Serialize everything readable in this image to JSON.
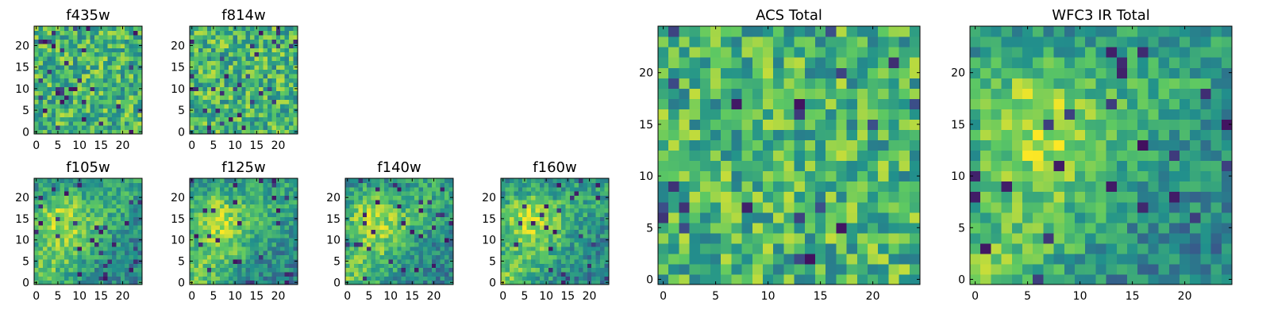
{
  "chart_data": [
    {
      "type": "heatmap",
      "title": "f435w",
      "xlabel": "",
      "ylabel": "",
      "xlim": [
        -0.5,
        24.5
      ],
      "ylim": [
        -0.5,
        24.5
      ],
      "xticks": [
        "0",
        "5",
        "10",
        "15",
        "20"
      ],
      "yticks": [
        "0",
        "5",
        "10",
        "15",
        "20"
      ],
      "grid": false,
      "colormap": "viridis",
      "pattern": "noise-high",
      "seed": 11
    },
    {
      "type": "heatmap",
      "title": "f814w",
      "xlabel": "",
      "ylabel": "",
      "xlim": [
        -0.5,
        24.5
      ],
      "ylim": [
        -0.5,
        24.5
      ],
      "xticks": [
        "0",
        "5",
        "10",
        "15",
        "20"
      ],
      "yticks": [
        "0",
        "5",
        "10",
        "15",
        "20"
      ],
      "grid": false,
      "colormap": "viridis",
      "pattern": "noise-high",
      "seed": 23
    },
    {
      "type": "heatmap",
      "title": "f105w",
      "xlabel": "",
      "ylabel": "",
      "xlim": [
        -0.5,
        24.5
      ],
      "ylim": [
        -0.5,
        24.5
      ],
      "xticks": [
        "0",
        "5",
        "10",
        "15",
        "20"
      ],
      "yticks": [
        "0",
        "5",
        "10",
        "15",
        "20"
      ],
      "grid": false,
      "colormap": "viridis",
      "pattern": "diagonal-ridge",
      "seed": 37
    },
    {
      "type": "heatmap",
      "title": "f125w",
      "xlabel": "",
      "ylabel": "",
      "xlim": [
        -0.5,
        24.5
      ],
      "ylim": [
        -0.5,
        24.5
      ],
      "xticks": [
        "0",
        "5",
        "10",
        "15",
        "20"
      ],
      "yticks": [
        "0",
        "5",
        "10",
        "15",
        "20"
      ],
      "grid": false,
      "colormap": "viridis",
      "pattern": "diagonal-ridge",
      "seed": 41
    },
    {
      "type": "heatmap",
      "title": "f140w",
      "xlabel": "",
      "ylabel": "",
      "xlim": [
        -0.5,
        24.5
      ],
      "ylim": [
        -0.5,
        24.5
      ],
      "xticks": [
        "0",
        "5",
        "10",
        "15",
        "20"
      ],
      "yticks": [
        "0",
        "5",
        "10",
        "15",
        "20"
      ],
      "grid": false,
      "colormap": "viridis",
      "pattern": "diagonal-ridge",
      "seed": 53
    },
    {
      "type": "heatmap",
      "title": "f160w",
      "xlabel": "",
      "ylabel": "",
      "xlim": [
        -0.5,
        24.5
      ],
      "ylim": [
        -0.5,
        24.5
      ],
      "xticks": [
        "0",
        "5",
        "10",
        "15",
        "20"
      ],
      "yticks": [
        "0",
        "5",
        "10",
        "15",
        "20"
      ],
      "grid": false,
      "colormap": "viridis",
      "pattern": "diagonal-ridge",
      "seed": 67
    },
    {
      "type": "heatmap",
      "title": "ACS Total",
      "xlabel": "",
      "ylabel": "",
      "xlim": [
        -0.5,
        24.5
      ],
      "ylim": [
        -0.5,
        24.5
      ],
      "xticks": [
        "0",
        "5",
        "10",
        "15",
        "20"
      ],
      "yticks": [
        "0",
        "5",
        "10",
        "15",
        "20"
      ],
      "grid": false,
      "colormap": "viridis",
      "pattern": "noise-high",
      "seed": 79
    },
    {
      "type": "heatmap",
      "title": "WFC3 IR Total",
      "xlabel": "",
      "ylabel": "",
      "xlim": [
        -0.5,
        24.5
      ],
      "ylim": [
        -0.5,
        24.5
      ],
      "xticks": [
        "0",
        "5",
        "10",
        "15",
        "20"
      ],
      "yticks": [
        "0",
        "5",
        "10",
        "15",
        "20"
      ],
      "grid": false,
      "colormap": "viridis",
      "pattern": "diagonal-ridge",
      "seed": 97
    }
  ],
  "colors": {
    "viridis": [
      "#440154",
      "#3b528b",
      "#21918c",
      "#5ec962",
      "#fde725"
    ]
  }
}
